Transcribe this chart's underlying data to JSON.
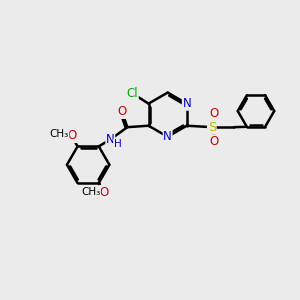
{
  "bg_color": "#ebebeb",
  "bond_color": "#000000",
  "bond_width": 1.8,
  "atom_colors": {
    "N": "#0000cc",
    "O": "#cc0000",
    "S": "#bbbb00",
    "Cl": "#00aa00",
    "C": "#000000",
    "H": "#333333"
  },
  "font_size": 8.5,
  "fig_size": [
    3.0,
    3.0
  ],
  "dpi": 100
}
